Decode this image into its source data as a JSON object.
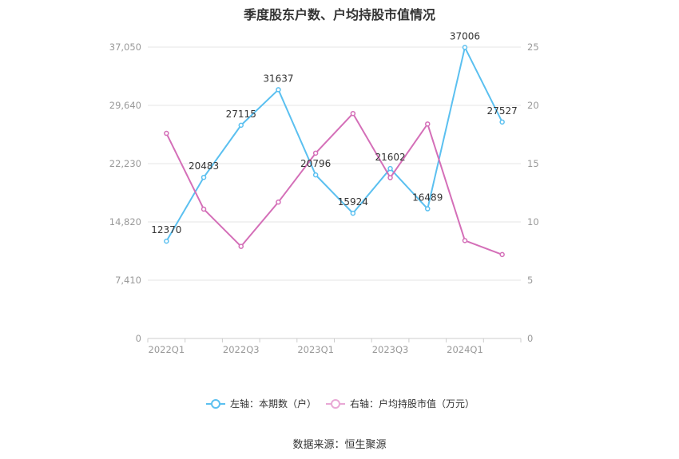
{
  "title": "季度股东户数、户均持股市值情况",
  "source": "数据来源：恒生聚源",
  "chart_data": {
    "type": "line",
    "categories": [
      "2022Q1",
      "2022Q2",
      "2022Q3",
      "2022Q4",
      "2023Q1",
      "2023Q2",
      "2023Q3",
      "2023Q4",
      "2024Q1",
      "2024Q2"
    ],
    "x_tick_labels": [
      "2022Q1",
      "",
      "2022Q3",
      "",
      "2023Q1",
      "",
      "2023Q3",
      "",
      "2024Q1",
      ""
    ],
    "y_left": {
      "ylim": [
        0,
        37050
      ],
      "ticks": [
        0,
        7410,
        14820,
        22230,
        29640,
        37050
      ],
      "tick_labels": [
        "0",
        "7,410",
        "14,820",
        "22,230",
        "29,640",
        "37,050"
      ]
    },
    "y_right": {
      "ylim": [
        0,
        25
      ],
      "ticks": [
        0,
        5,
        10,
        15,
        20,
        25
      ],
      "tick_labels": [
        "0",
        "5",
        "10",
        "15",
        "20",
        "25"
      ]
    },
    "series": [
      {
        "name": "左轴：本期数（户）",
        "axis": "left",
        "color": "#5bc0f0",
        "values": [
          12370,
          20483,
          27115,
          31637,
          20796,
          15924,
          21602,
          16489,
          37006,
          27527
        ],
        "labels": [
          "12370",
          "20483",
          "27115",
          "31637",
          "20796",
          "15924",
          "21602",
          "16489",
          "37006",
          "27527"
        ]
      },
      {
        "name": "右轴：户均持股市值（万元）",
        "axis": "right",
        "color": "#d46fb8",
        "values": [
          17.6,
          11.1,
          7.9,
          11.7,
          15.9,
          19.3,
          13.8,
          18.4,
          8.4,
          7.2
        ]
      }
    ],
    "legend_position": "bottom",
    "grid": true
  }
}
